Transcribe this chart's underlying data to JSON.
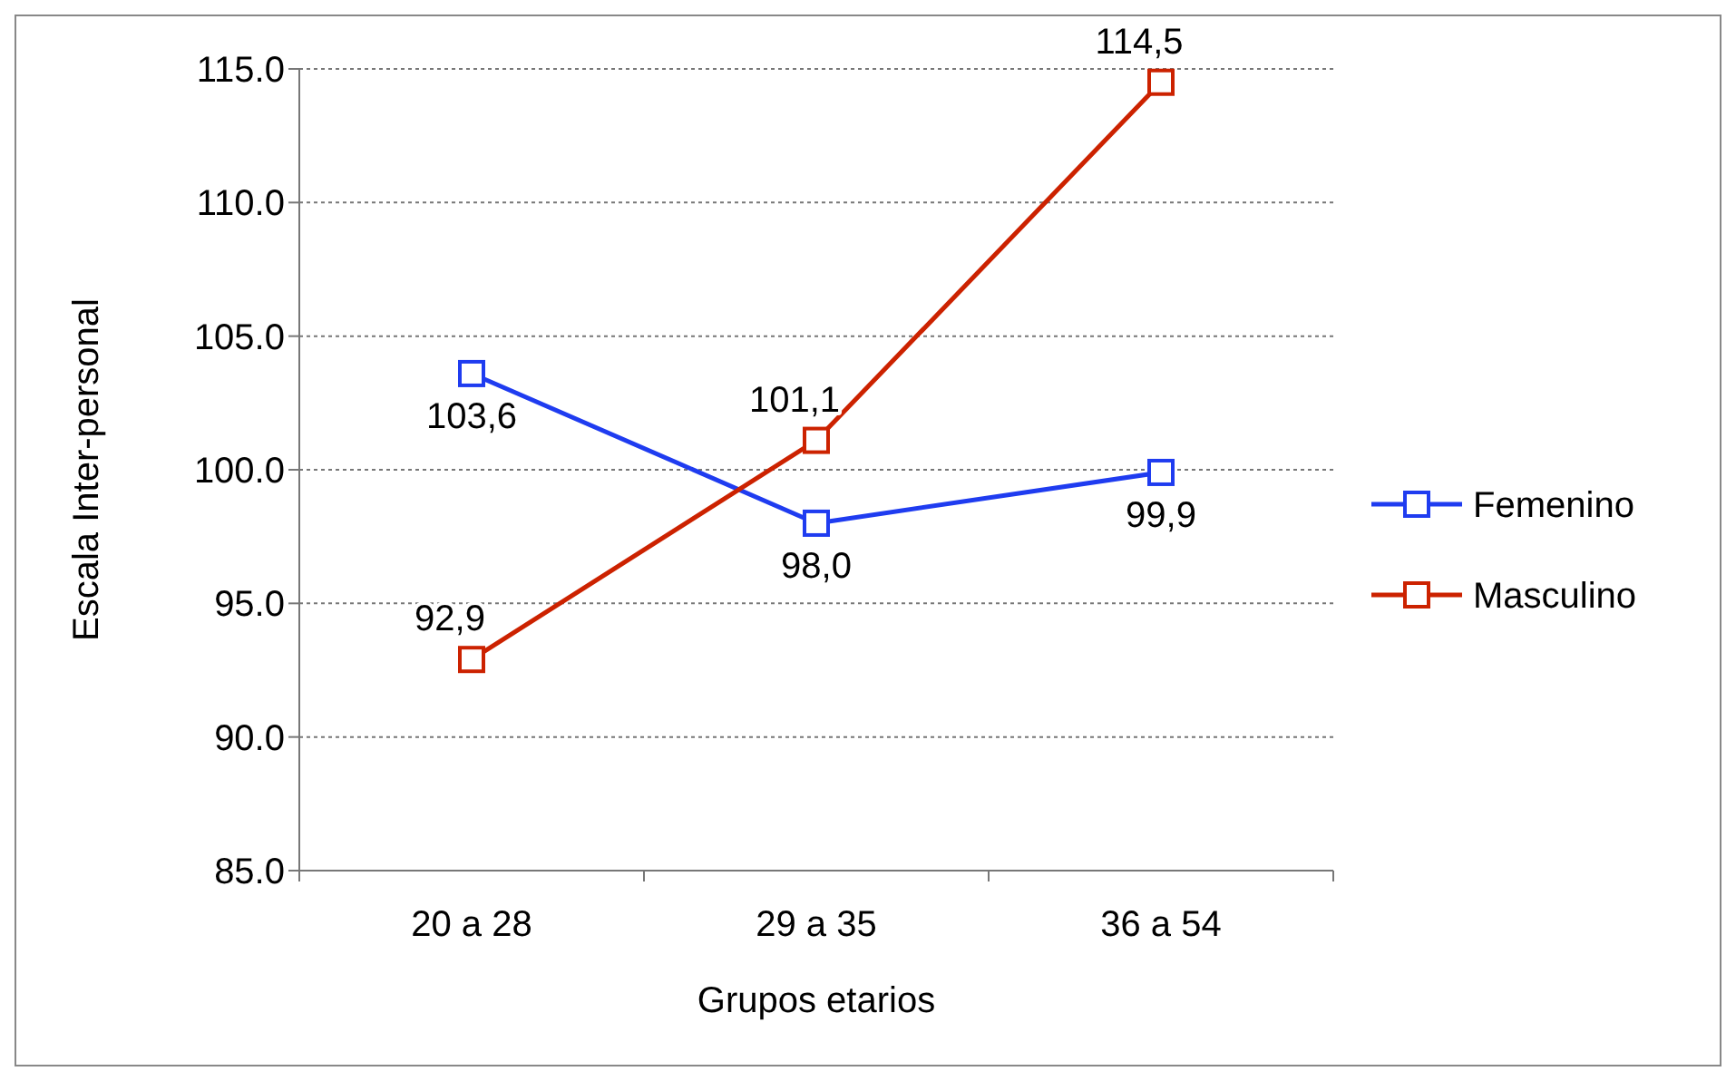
{
  "chart_data": {
    "type": "line",
    "xlabel": "Grupos etarios",
    "ylabel": "Escala Inter-personal",
    "categories": [
      "20 a 28",
      "29 a 35",
      "36 a 54"
    ],
    "series": [
      {
        "name": "Femenino",
        "color": "#1f3cf0",
        "values": [
          103.6,
          98.0,
          99.9
        ],
        "value_labels": [
          "103,6",
          "98,0",
          "99,9"
        ]
      },
      {
        "name": "Masculino",
        "color": "#cc2200",
        "values": [
          92.9,
          101.1,
          114.5
        ],
        "value_labels": [
          "92,9",
          "101,1",
          "114,5"
        ]
      }
    ],
    "ylim": [
      85,
      115
    ],
    "yticks": [
      {
        "value": 85,
        "label": "85.0"
      },
      {
        "value": 90,
        "label": "90.0"
      },
      {
        "value": 95,
        "label": "95.0"
      },
      {
        "value": 100,
        "label": "100.0"
      },
      {
        "value": 105,
        "label": "105.0"
      },
      {
        "value": 110,
        "label": "110.0"
      },
      {
        "value": 115,
        "label": "115.0"
      }
    ],
    "grid": "y",
    "legend": "right",
    "marker": "square",
    "line_style": "solid"
  }
}
